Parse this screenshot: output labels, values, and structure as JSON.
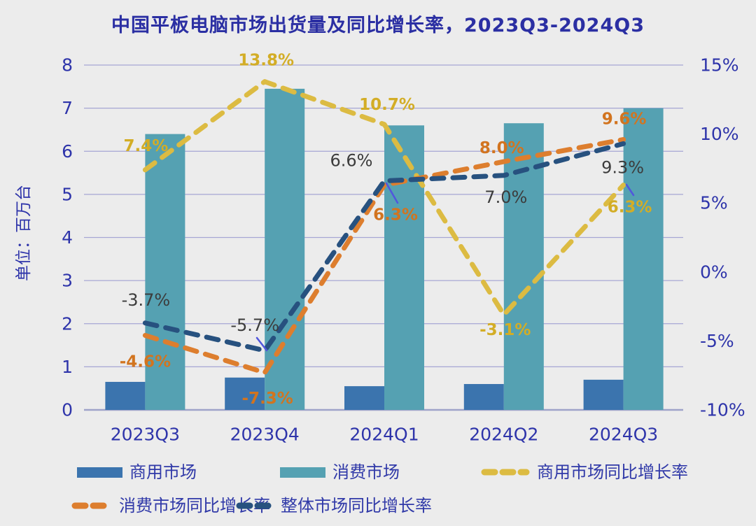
{
  "title": "中国平板电脑市场出货量及同比增长率，2023Q3-2024Q3",
  "chart_data": {
    "type": "combo-bar-line",
    "title": "中国平板电脑市场出货量及同比增长率，2023Q3-2024Q3",
    "categories": [
      "2023Q3",
      "2023Q4",
      "2024Q1",
      "2024Q2",
      "2024Q3"
    ],
    "grid": "horizontal",
    "legend_position": "bottom",
    "axis_left": {
      "label": "单位：百万台",
      "min": 0,
      "max": 8,
      "ticks": [
        {
          "v": 0,
          "label": "0"
        },
        {
          "v": 1,
          "label": "1"
        },
        {
          "v": 2,
          "label": "2"
        },
        {
          "v": 3,
          "label": "3"
        },
        {
          "v": 4,
          "label": "4"
        },
        {
          "v": 5,
          "label": "5"
        },
        {
          "v": 6,
          "label": "6"
        },
        {
          "v": 7,
          "label": "7"
        },
        {
          "v": 8,
          "label": "8"
        }
      ]
    },
    "axis_right": {
      "min": -10,
      "max": 15,
      "unit": "%",
      "ticks": [
        {
          "v": 15,
          "label": "15%"
        },
        {
          "v": 10,
          "label": "10%"
        },
        {
          "v": 5,
          "label": "5%"
        },
        {
          "v": 0,
          "label": "0%"
        },
        {
          "v": -5,
          "label": "-5%"
        },
        {
          "v": -10,
          "label": "-10%"
        }
      ]
    },
    "bar_series": [
      {
        "name": "商用市场",
        "color": "#3b74ae",
        "values": [
          0.65,
          0.75,
          0.55,
          0.6,
          0.7
        ]
      },
      {
        "name": "消费市场",
        "color": "#55a1b2",
        "values": [
          6.4,
          7.45,
          6.6,
          6.65,
          7.0
        ]
      }
    ],
    "line_series": [
      {
        "name": "商用市场同比增长率",
        "color": "#dcbb42",
        "label_color": "#d3ad26",
        "values": [
          7.4,
          13.8,
          10.7,
          -3.1,
          6.3
        ],
        "data_labels": [
          "7.4%",
          "13.8%",
          "10.7%",
          "-3.1%",
          "6.3%"
        ]
      },
      {
        "name": "消费市场同比增长率",
        "color": "#dd7e2e",
        "label_color": "#d2741f",
        "values": [
          -4.6,
          -7.3,
          6.3,
          8.0,
          9.6
        ],
        "data_labels": [
          "-4.6%",
          "-7.3%",
          "6.3%",
          "8.0%",
          "9.6%"
        ]
      },
      {
        "name": "整体市场同比增长率",
        "color": "#27517f",
        "label_color": "#3c3c3c",
        "values": [
          -3.7,
          -5.7,
          6.6,
          7.0,
          9.3
        ],
        "data_labels": [
          "-3.7%",
          "-5.7%",
          "6.6%",
          "7.0%",
          "9.3%"
        ]
      }
    ]
  },
  "legend": [
    {
      "label": "商用市场",
      "marker": "rect",
      "color": "#3b74ae"
    },
    {
      "label": "消费市场",
      "marker": "rect",
      "color": "#55a1b2"
    },
    {
      "label": "商用市场同比增长率",
      "marker": "dash",
      "color": "#dcbb42"
    },
    {
      "label": "消费市场同比增长率",
      "marker": "dash",
      "color": "#dd7e2e"
    },
    {
      "label": "整体市场同比增长率",
      "marker": "dash",
      "color": "#27517f"
    }
  ],
  "colors": {
    "background": "#ececec",
    "grid": "#a6a6d4",
    "baseline": "#9fa3c9",
    "axis_text": "#2e34aa",
    "title": "#2b2fa3",
    "leader": "#5156dd"
  }
}
